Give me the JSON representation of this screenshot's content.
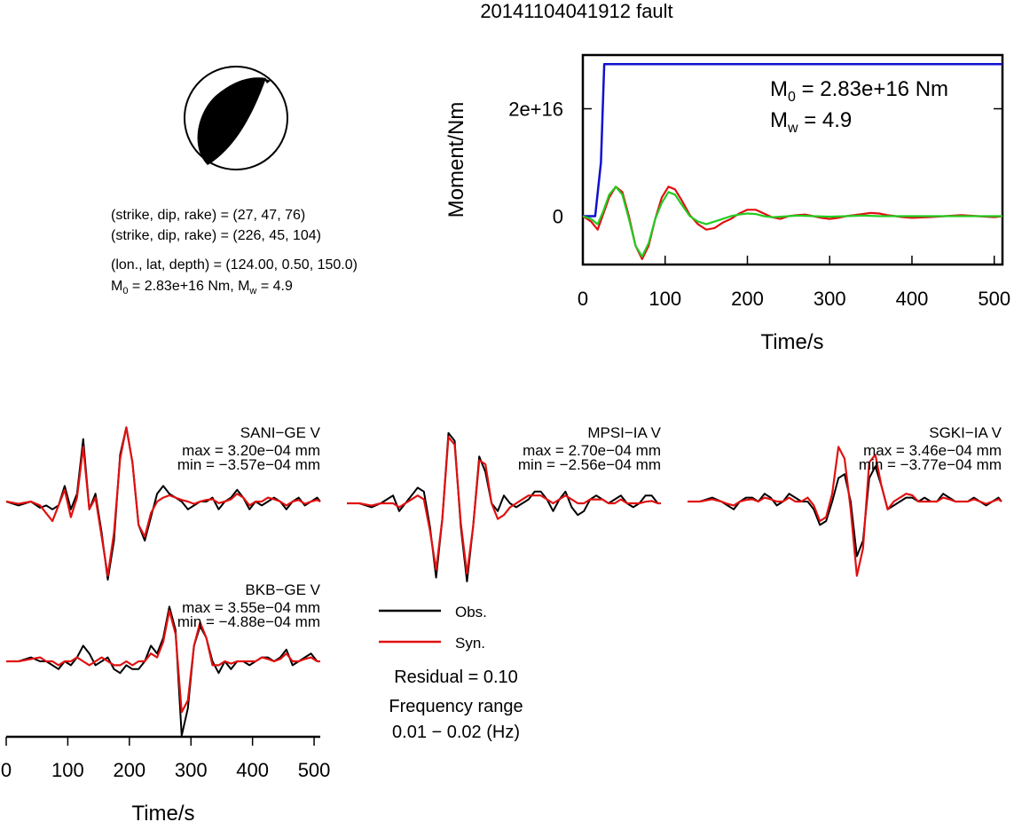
{
  "figure": {
    "title": "20141104041912 fault",
    "colors": {
      "observed": "#000000",
      "synthetic": "#e01010",
      "moment": "#1010d0",
      "stf": "#22cc22",
      "beachball_fill": "#000000"
    }
  },
  "focal": {
    "line1": "(strike, dip, rake) = (27, 47, 76)",
    "line2": "(strike, dip, rake) = (226, 45, 104)",
    "line3": "(lon., lat, depth) = (124.00, 0.50, 150.0)",
    "m0_prefix": "M",
    "m0_sub": "0",
    "m0_value": " = 2.83e+16 Nm, M",
    "mw_sub": "w",
    "mw_value": " = 4.9"
  },
  "legend": {
    "obs_label": "Obs.",
    "syn_label": "Syn.",
    "residual": "Residual = 0.10",
    "freq_label": "Frequency range",
    "freq_range": "0.01 − 0.02 (Hz)"
  },
  "chart_data": [
    {
      "type": "line",
      "title": "",
      "xlabel": "Time/s",
      "ylabel": "Moment/Nm",
      "xlim": [
        0,
        510
      ],
      "ylim": [
        -9000000000000000.0,
        3e+16
      ],
      "xticks": [
        "0",
        "100",
        "200",
        "300",
        "400",
        "500"
      ],
      "yticks": [
        "0",
        "2e+16"
      ],
      "annotation": {
        "m0": " = 2.83e+16 Nm",
        "m0_sym": "M",
        "m0_sub": "0",
        "mw": " = 4.9",
        "mw_sym": "M",
        "mw_sub": "w"
      },
      "series": [
        {
          "color": "#1010d0",
          "x": [
            0,
            15,
            22,
            26,
            510
          ],
          "y": [
            0,
            0,
            1e+16,
            2.83e+16,
            2.83e+16
          ]
        },
        {
          "color": "#e01010",
          "x": [
            0,
            10,
            18,
            25,
            32,
            40,
            48,
            56,
            64,
            72,
            80,
            88,
            96,
            104,
            112,
            120,
            130,
            140,
            150,
            160,
            170,
            180,
            190,
            200,
            210,
            220,
            230,
            240,
            250,
            260,
            270,
            280,
            290,
            300,
            310,
            320,
            330,
            340,
            350,
            360,
            370,
            380,
            390,
            400,
            420,
            440,
            460,
            480,
            500,
            510
          ],
          "y": [
            0,
            -1000000000000000.0,
            -2500000000000000.0,
            500000000000000.0,
            3500000000000000.0,
            5500000000000000.0,
            4500000000000000.0,
            0.0,
            -5500000000000000.0,
            -8000000000000000.0,
            -5500000000000000.0,
            -500000000000000.0,
            3500000000000000.0,
            5500000000000000.0,
            5000000000000000.0,
            3000000000000000.0,
            200000000000000.0,
            -1500000000000000.0,
            -2500000000000000.0,
            -2200000000000000.0,
            -1200000000000000.0,
            -500000000000000.0,
            500000000000000.0,
            1200000000000000.0,
            1200000000000000.0,
            500000000000000.0,
            -200000000000000.0,
            -500000000000000.0,
            0.0,
            200000000000000.0,
            300000000000000.0,
            0.0,
            -300000000000000.0,
            -500000000000000.0,
            -300000000000000.0,
            0.0,
            200000000000000.0,
            400000000000000.0,
            600000000000000.0,
            500000000000000.0,
            200000000000000.0,
            0.0,
            -200000000000000.0,
            -300000000000000.0,
            -200000000000000.0,
            0.0,
            200000000000000.0,
            0.0,
            -200000000000000.0,
            0.0
          ]
        },
        {
          "color": "#22cc22",
          "x": [
            0,
            10,
            18,
            25,
            32,
            40,
            48,
            56,
            64,
            72,
            80,
            88,
            96,
            104,
            112,
            120,
            130,
            140,
            150,
            160,
            170,
            180,
            190,
            200,
            210,
            220,
            230,
            240,
            260,
            280,
            300,
            320,
            340,
            360,
            380,
            400,
            420,
            440,
            460,
            480,
            500,
            510
          ],
          "y": [
            0,
            -500000000000000.0,
            -1500000000000000.0,
            1000000000000000.0,
            4000000000000000.0,
            5500000000000000.0,
            4000000000000000.0,
            -500000000000000.0,
            -5500000000000000.0,
            -7500000000000000.0,
            -5000000000000000.0,
            -500000000000000.0,
            2500000000000000.0,
            4500000000000000.0,
            4000000000000000.0,
            2200000000000000.0,
            0.0,
            -1000000000000000.0,
            -1500000000000000.0,
            -1000000000000000.0,
            -500000000000000.0,
            0.0,
            300000000000000.0,
            500000000000000.0,
            400000000000000.0,
            0.0,
            -200000000000000.0,
            -100000000000000.0,
            100000000000000.0,
            0.0,
            -100000000000000.0,
            0.0,
            100000000000000.0,
            0.0,
            0.0,
            0.0,
            0.0,
            0.0,
            0.0,
            0.0,
            0.0,
            0.0
          ]
        }
      ]
    },
    {
      "type": "line",
      "xlabel": "Time/s",
      "xlim": [
        0,
        510
      ],
      "xticks": [
        "0",
        "100",
        "200",
        "300",
        "400",
        "500"
      ],
      "stations": [
        {
          "name": "SANI−GE V",
          "max": "max = 3.20e−04 mm",
          "min": "min = −3.57e−04 mm",
          "x": [
            0,
            20,
            40,
            55,
            65,
            75,
            85,
            95,
            105,
            115,
            125,
            135,
            145,
            155,
            165,
            175,
            185,
            195,
            205,
            215,
            225,
            235,
            245,
            255,
            265,
            275,
            285,
            295,
            305,
            315,
            325,
            335,
            345,
            355,
            365,
            375,
            385,
            395,
            405,
            415,
            425,
            435,
            445,
            455,
            465,
            475,
            485,
            495,
            505,
            510
          ],
          "obs": [
            0,
            -0.05,
            0.0,
            -0.08,
            -0.05,
            -0.1,
            -0.05,
            0.2,
            -0.1,
            0.1,
            0.8,
            -0.1,
            0.1,
            -0.4,
            -1.0,
            -0.5,
            0.6,
            0.95,
            0.5,
            -0.3,
            -0.5,
            -0.2,
            0.1,
            0.2,
            0.1,
            0.05,
            0.0,
            -0.1,
            -0.05,
            0.0,
            0.0,
            0.05,
            -0.1,
            0.0,
            0.05,
            0.15,
            0.05,
            -0.1,
            0.0,
            -0.05,
            0.0,
            0.05,
            0.0,
            -0.1,
            0.0,
            0.05,
            -0.05,
            0.0,
            0.05,
            0.0
          ],
          "syn": [
            0,
            -0.03,
            0.0,
            -0.05,
            -0.15,
            -0.25,
            -0.05,
            0.15,
            -0.2,
            0.05,
            0.7,
            -0.1,
            0.05,
            -0.45,
            -0.95,
            -0.4,
            0.55,
            0.95,
            0.5,
            -0.3,
            -0.45,
            -0.15,
            0.0,
            0.05,
            0.08,
            0.05,
            0.02,
            0.0,
            -0.03,
            0.0,
            0.02,
            0.03,
            -0.02,
            0.0,
            0.03,
            0.1,
            0.05,
            -0.05,
            0.0,
            0.0,
            0.05,
            0.03,
            0.0,
            -0.05,
            0.0,
            0.02,
            -0.03,
            0.0,
            0.02,
            0.0
          ]
        },
        {
          "name": "MPSI−IA V",
          "max": "max = 2.70e−04 mm",
          "min": "min = −2.56e−04 mm",
          "x": [
            0,
            20,
            40,
            55,
            65,
            75,
            85,
            95,
            105,
            115,
            125,
            135,
            145,
            155,
            165,
            175,
            185,
            195,
            205,
            215,
            225,
            235,
            245,
            255,
            265,
            275,
            285,
            295,
            305,
            315,
            325,
            335,
            345,
            355,
            365,
            375,
            385,
            395,
            405,
            415,
            425,
            435,
            445,
            455,
            465,
            475,
            485,
            495,
            505,
            510
          ],
          "obs": [
            0,
            0.0,
            -0.05,
            0.0,
            0.05,
            0.1,
            -0.1,
            0.0,
            0.1,
            0.2,
            0.15,
            -0.3,
            -0.95,
            -0.2,
            0.9,
            0.8,
            -0.3,
            -1.0,
            -0.3,
            0.6,
            0.4,
            0.0,
            -0.1,
            0.1,
            0.0,
            -0.05,
            0.0,
            0.05,
            0.15,
            0.15,
            0.05,
            -0.1,
            0.05,
            0.15,
            -0.05,
            -0.15,
            -0.1,
            0.05,
            0.1,
            0.05,
            0.0,
            0.05,
            0.1,
            0.0,
            -0.05,
            0.0,
            0.1,
            0.1,
            0.0,
            0.0
          ],
          "syn": [
            0,
            0.0,
            -0.03,
            0.0,
            0.0,
            0.0,
            -0.05,
            0.0,
            0.05,
            0.1,
            0.05,
            -0.35,
            -0.85,
            -0.2,
            0.85,
            0.75,
            -0.25,
            -0.9,
            -0.3,
            0.55,
            0.5,
            0.0,
            -0.2,
            -0.15,
            -0.05,
            0.0,
            0.05,
            0.1,
            0.1,
            0.1,
            0.05,
            0.0,
            0.05,
            0.1,
            0.05,
            0.0,
            0.0,
            0.05,
            0.05,
            0.05,
            0.0,
            0.0,
            0.05,
            0.0,
            0.0,
            0.0,
            0.02,
            0.03,
            0.0,
            0.0
          ]
        },
        {
          "name": "SGKI−IA V",
          "max": "max = 3.46e−04 mm",
          "min": "min = −3.77e−04 mm",
          "x": [
            0,
            20,
            40,
            55,
            65,
            75,
            85,
            95,
            105,
            115,
            125,
            135,
            145,
            155,
            165,
            175,
            185,
            195,
            205,
            215,
            225,
            235,
            245,
            255,
            265,
            275,
            285,
            295,
            305,
            315,
            325,
            335,
            345,
            355,
            365,
            375,
            385,
            395,
            405,
            415,
            425,
            435,
            445,
            455,
            465,
            475,
            485,
            495,
            505,
            510
          ],
          "obs": [
            0,
            0.0,
            0.05,
            0.0,
            -0.05,
            -0.1,
            0.0,
            0.05,
            0.05,
            0.0,
            0.1,
            0.05,
            -0.05,
            0.0,
            0.1,
            0.05,
            0.0,
            0.0,
            -0.1,
            -0.3,
            -0.25,
            0.0,
            0.3,
            0.35,
            0.0,
            -0.7,
            -0.5,
            0.3,
            0.45,
            0.2,
            -0.1,
            -0.05,
            0.0,
            0.05,
            0.05,
            0.0,
            0.05,
            0.0,
            0.0,
            0.1,
            0.05,
            0.0,
            0.0,
            0.0,
            0.05,
            0.0,
            -0.05,
            0.0,
            0.05,
            0.0
          ],
          "syn": [
            0,
            0.0,
            0.03,
            0.0,
            -0.03,
            -0.05,
            0.0,
            0.02,
            0.03,
            0.0,
            0.05,
            0.03,
            0.0,
            0.0,
            0.05,
            0.0,
            0.0,
            0.05,
            -0.05,
            -0.25,
            -0.2,
            0.1,
            0.7,
            0.55,
            -0.1,
            -0.95,
            -0.6,
            0.5,
            0.6,
            0.2,
            -0.1,
            0.0,
            0.05,
            0.1,
            0.08,
            0.0,
            0.0,
            0.0,
            0.0,
            0.05,
            0.03,
            0.0,
            0.0,
            0.0,
            0.03,
            0.0,
            -0.03,
            0.0,
            0.03,
            0.0
          ]
        },
        {
          "name": "BKB−GE V",
          "max": "max = 3.55e−04 mm",
          "min": "min = −4.88e−04 mm",
          "x": [
            0,
            20,
            40,
            55,
            65,
            75,
            85,
            95,
            105,
            115,
            125,
            135,
            145,
            155,
            165,
            175,
            185,
            195,
            205,
            215,
            225,
            235,
            245,
            255,
            265,
            275,
            285,
            295,
            305,
            315,
            325,
            335,
            345,
            355,
            365,
            375,
            385,
            395,
            405,
            415,
            425,
            435,
            445,
            455,
            465,
            475,
            485,
            495,
            505,
            510
          ],
          "obs": [
            0,
            0.0,
            0.05,
            0.0,
            0.0,
            -0.05,
            -0.1,
            0.0,
            -0.05,
            0.05,
            0.2,
            0.1,
            -0.05,
            0.0,
            0.05,
            -0.1,
            -0.15,
            -0.05,
            -0.1,
            -0.1,
            0.0,
            0.2,
            0.1,
            0.3,
            0.7,
            0.4,
            -0.95,
            -0.6,
            0.2,
            0.45,
            0.3,
            0.0,
            -0.15,
            0.0,
            -0.1,
            0.0,
            0.0,
            -0.05,
            0.0,
            0.05,
            0.05,
            0.0,
            0.05,
            0.15,
            -0.05,
            0.0,
            0.05,
            0.1,
            0.0,
            0.0
          ],
          "syn": [
            0,
            0.0,
            0.03,
            0.05,
            0.0,
            0.0,
            -0.05,
            0.0,
            0.0,
            0.05,
            0.0,
            -0.05,
            0.0,
            0.05,
            0.0,
            -0.05,
            -0.05,
            0.0,
            -0.05,
            0.0,
            0.0,
            0.1,
            0.05,
            0.25,
            0.65,
            0.35,
            -0.65,
            -0.5,
            0.2,
            0.5,
            0.3,
            -0.05,
            -0.05,
            0.0,
            -0.03,
            0.0,
            0.0,
            0.0,
            0.0,
            0.05,
            0.03,
            0.0,
            0.03,
            0.1,
            0.0,
            0.0,
            0.03,
            0.05,
            0.0,
            0.0
          ]
        }
      ]
    }
  ]
}
